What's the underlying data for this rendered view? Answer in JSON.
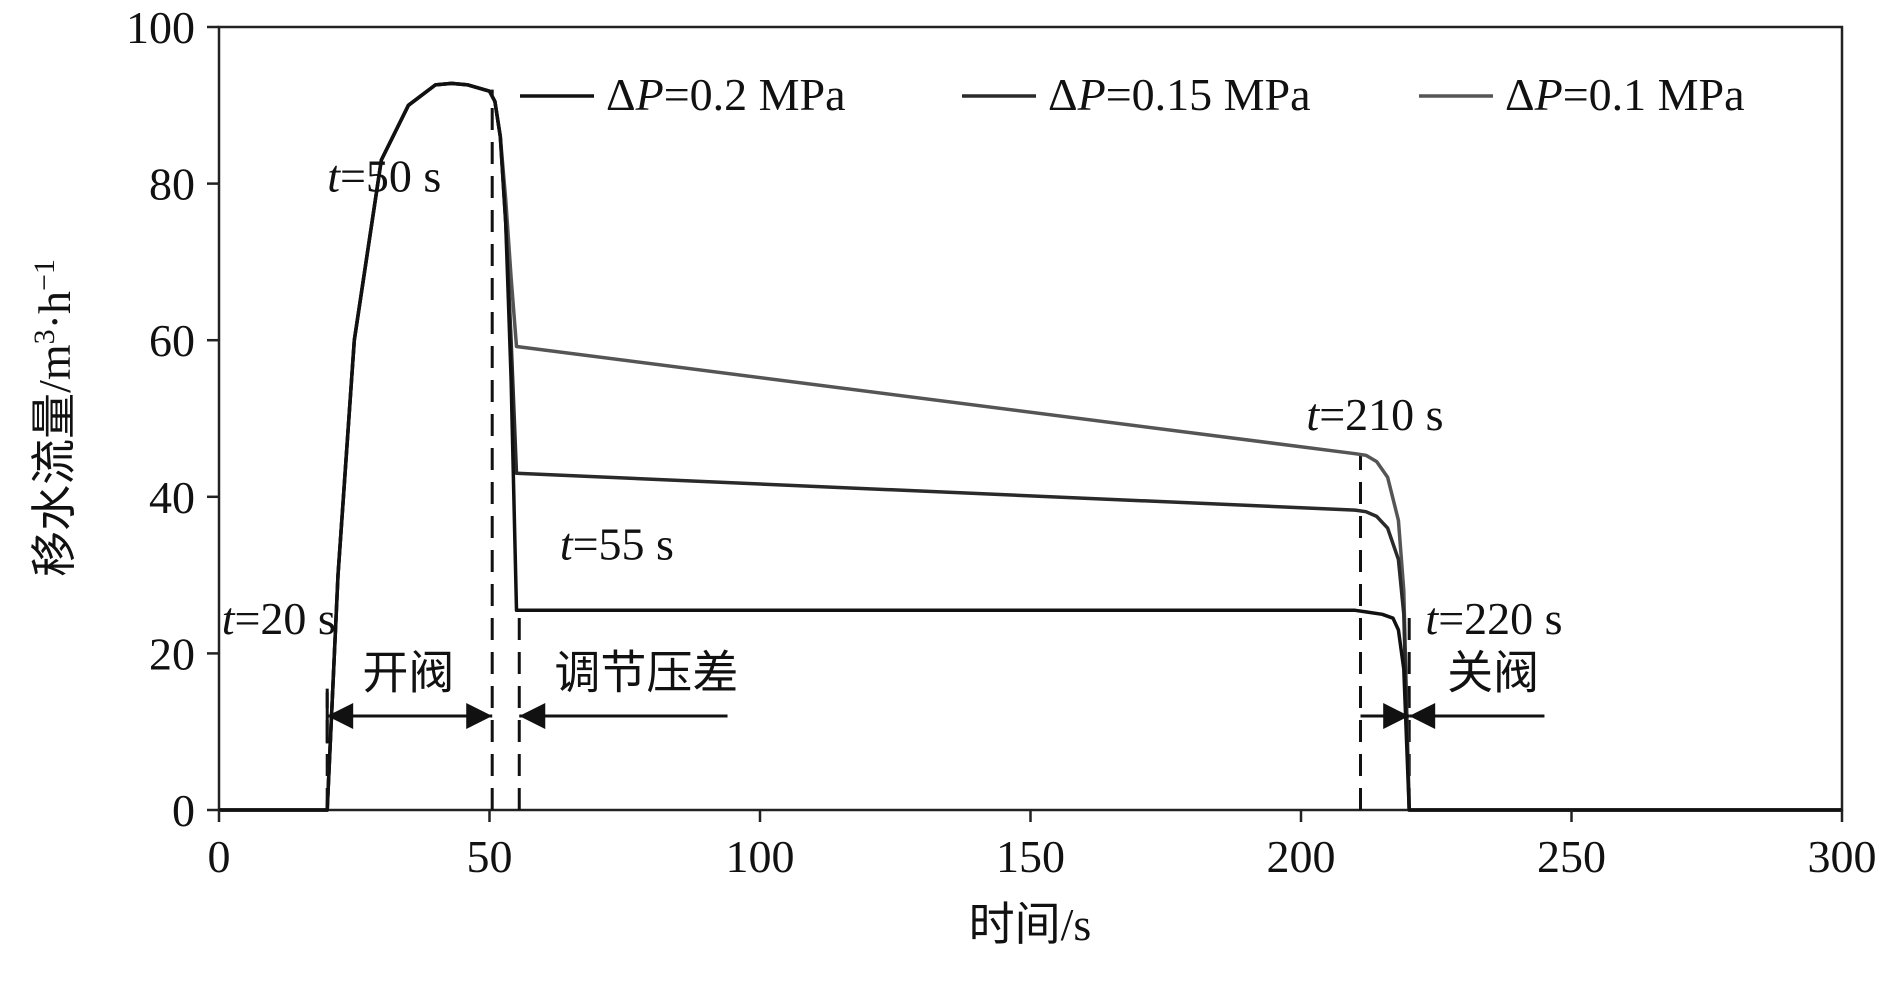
{
  "chart_data": {
    "type": "line",
    "title": "",
    "xlabel": "时间/s",
    "ylabel_main": "移水流量/m",
    "ylabel_sup1": "3",
    "ylabel_mid": "·h",
    "ylabel_sup2": "−1",
    "xlim": [
      0,
      300
    ],
    "ylim": [
      0,
      100
    ],
    "x_ticks": [
      "0",
      "50",
      "100",
      "150",
      "200",
      "250",
      "300"
    ],
    "y_ticks": [
      "0",
      "20",
      "40",
      "60",
      "80",
      "100"
    ],
    "grid": false,
    "legend_position": "top-right",
    "series": [
      {
        "name_prefix": "Δ",
        "name_var": "P",
        "name_suffix": "=0.2 MPa",
        "color": "#111111",
        "x": [
          0,
          20,
          22,
          25,
          30,
          35,
          40,
          43,
          46,
          50,
          51,
          52,
          53,
          54,
          55,
          100,
          150,
          210,
          212,
          215,
          217,
          218,
          219,
          220,
          300
        ],
        "y": [
          0,
          0,
          30,
          60,
          83,
          90,
          92.6,
          92.8,
          92.6,
          91.8,
          90.5,
          86,
          75,
          55,
          25.5,
          25.5,
          25.5,
          25.5,
          25.3,
          25,
          24.5,
          23,
          18,
          0,
          0
        ]
      },
      {
        "name_prefix": "Δ",
        "name_var": "P",
        "name_suffix": "=0.15 MPa",
        "color": "#2a2a2a",
        "x": [
          0,
          20,
          22,
          25,
          30,
          35,
          40,
          43,
          46,
          50,
          51,
          52,
          53,
          54,
          55,
          210,
          212,
          214,
          216,
          218,
          219,
          220,
          300
        ],
        "y": [
          0,
          0,
          30,
          60,
          83,
          90,
          92.6,
          92.8,
          92.6,
          91.8,
          90.5,
          86,
          75,
          60,
          43,
          38.3,
          38.1,
          37.5,
          36,
          32,
          25,
          0,
          0
        ]
      },
      {
        "name_prefix": "Δ",
        "name_var": "P",
        "name_suffix": "=0.1 MPa",
        "color": "#555555",
        "x": [
          0,
          20,
          22,
          25,
          30,
          35,
          40,
          43,
          46,
          50,
          51,
          52,
          53,
          54,
          55,
          210,
          212,
          214,
          216,
          218,
          219,
          220,
          300
        ],
        "y": [
          0,
          0,
          30,
          60,
          83,
          90,
          92.6,
          92.8,
          92.6,
          91.8,
          90.5,
          86,
          78,
          68,
          59.2,
          45.5,
          45.3,
          44.5,
          42.5,
          37,
          28,
          0,
          0
        ]
      }
    ],
    "vlines": [
      {
        "x": 20,
        "y0": 0,
        "y1": 15
      },
      {
        "x": 50.5,
        "y0": 0,
        "y1": 92
      },
      {
        "x": 55.5,
        "y0": 0,
        "y1": 25.5
      },
      {
        "x": 211,
        "y0": 0,
        "y1": 45.5
      },
      {
        "x": 220,
        "y0": 0,
        "y1": 25
      }
    ],
    "arrows": [
      {
        "from": 20,
        "to": 50.5,
        "y": 12,
        "double": true
      },
      {
        "from": 94,
        "to": 55.5,
        "y": 12,
        "double": false
      },
      {
        "from": 211,
        "to": 220,
        "y": 12,
        "double": false,
        "head_at_to": true
      },
      {
        "from": 245,
        "to": 220,
        "y": 12,
        "double": false
      }
    ],
    "annotations": [
      {
        "var": "t",
        "rest": "=50 s",
        "x": 20,
        "y": 79
      },
      {
        "var": "t",
        "rest": "=55 s",
        "x": 63,
        "y": 32
      },
      {
        "var": "t",
        "rest": "=20 s",
        "x": 0.5,
        "y": 22.5
      },
      {
        "var": "t",
        "rest": "=210 s",
        "x": 201,
        "y": 48.5
      },
      {
        "var": "t",
        "rest": "=220 s",
        "x": 223,
        "y": 22.5
      }
    ],
    "phase_labels": [
      {
        "text": "开阀",
        "x": 26.5,
        "y": 15.5
      },
      {
        "text": "调节压差",
        "x": 62,
        "y": 15.5
      },
      {
        "text": "关阀",
        "x": 227,
        "y": 15.5
      }
    ]
  }
}
